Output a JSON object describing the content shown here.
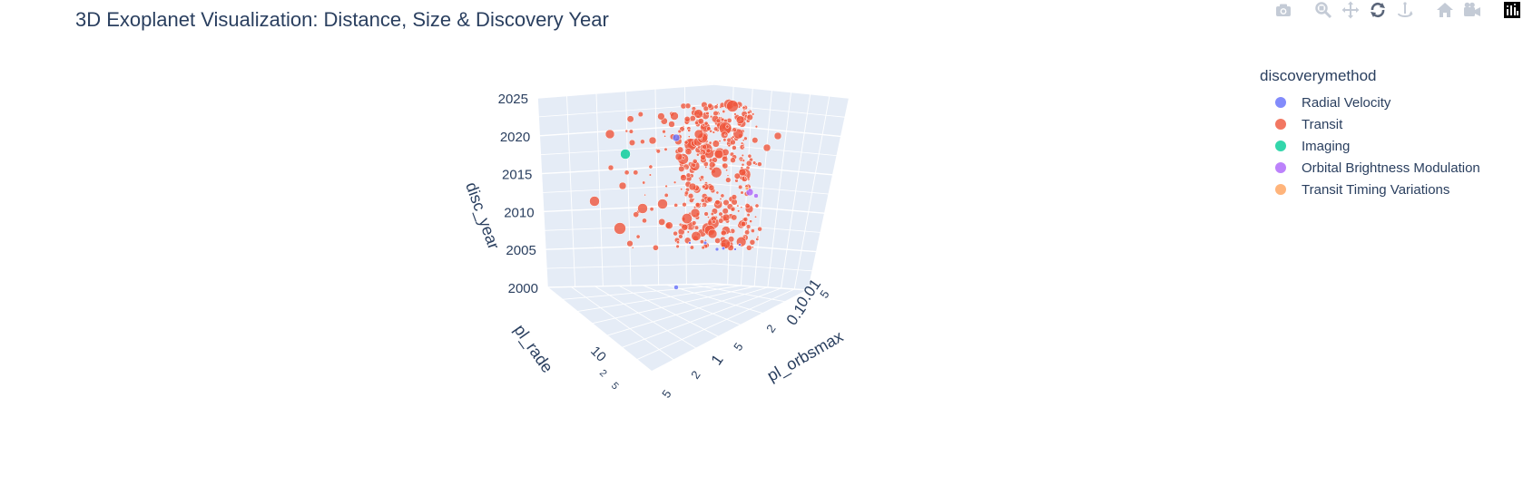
{
  "title": "3D Exoplanet Visualization: Distance, Size & Discovery Year",
  "modebar": {
    "buttons": [
      {
        "name": "camera-icon"
      },
      {
        "name": "zoom-icon"
      },
      {
        "name": "pan-icon"
      },
      {
        "name": "orbit-rotation-icon"
      },
      {
        "name": "turntable-rotation-icon"
      },
      {
        "name": "home-icon"
      },
      {
        "name": "video-camera-icon"
      },
      {
        "name": "plotly-logo-icon"
      }
    ]
  },
  "legend": {
    "title": "discoverymethod",
    "items": [
      {
        "label": "Radial Velocity",
        "color": "#636efa"
      },
      {
        "label": "Transit",
        "color": "#ef553b"
      },
      {
        "label": "Imaging",
        "color": "#00cc96"
      },
      {
        "label": "Orbital Brightness Modulation",
        "color": "#ab63fa"
      },
      {
        "label": "Transit Timing Variations",
        "color": "#ffa15a"
      }
    ]
  },
  "chart_data": {
    "type": "scatter3d",
    "title": "3D Exoplanet Visualization: Distance, Size & Discovery Year",
    "x_axis": {
      "label": "pl_orbsmax",
      "scale": "log",
      "tick_labels": [
        "0.01",
        "2",
        "5",
        "0.1",
        "2",
        "5",
        "1",
        "2",
        "5"
      ]
    },
    "y_axis": {
      "label": "pl_rade",
      "scale": "log",
      "tick_labels": [
        "10",
        "2",
        "5"
      ]
    },
    "z_axis": {
      "label": "disc_year",
      "range": [
        2000,
        2025
      ],
      "tick_labels": [
        "2000",
        "2005",
        "2010",
        "2015",
        "2020",
        "2025"
      ]
    },
    "legend_title": "discoverymethod",
    "legend_position": "top-right",
    "series": [
      {
        "name": "Radial Velocity",
        "color": "#636efa",
        "approx_points": 8
      },
      {
        "name": "Transit",
        "color": "#ef553b",
        "approx_points": 400
      },
      {
        "name": "Imaging",
        "color": "#00cc96",
        "approx_points": 1
      },
      {
        "name": "Orbital Brightness Modulation",
        "color": "#ab63fa",
        "approx_points": 2
      },
      {
        "name": "Transit Timing Variations",
        "color": "#ffa15a",
        "approx_points": 1
      }
    ]
  }
}
